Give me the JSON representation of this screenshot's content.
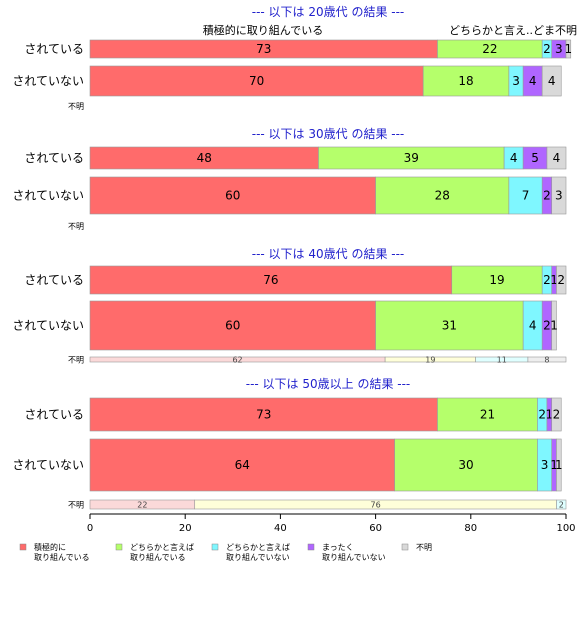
{
  "chart_data": {
    "type": "bar",
    "orientation": "horizontal",
    "stacked": true,
    "xlim": [
      0,
      100
    ],
    "x_ticks": [
      "0",
      "20",
      "40",
      "60",
      "80",
      "100"
    ],
    "grid": false,
    "legend_placement": "bottom",
    "series": [
      {
        "name": "積極的に 取り組んでいる",
        "label_lines": [
          "積極的に",
          "取り組んでいる"
        ],
        "color": "#ff6b6b",
        "light_color": "#fbd9d9"
      },
      {
        "name": "どちらかと言えば 取り組んでいる",
        "label_lines": [
          "どちらかと言えば",
          "取り組んでいる"
        ],
        "color": "#b5ff6b",
        "light_color": "#ffffd9"
      },
      {
        "name": "どちらかと言えば 取り組んでいない",
        "label_lines": [
          "どちらかと言えば",
          "取り組んでいない"
        ],
        "color": "#7ff7ff",
        "light_color": "#dfffff"
      },
      {
        "name": "まったく 取り組んでいない",
        "label_lines": [
          "まったく",
          "取り組んでいない"
        ],
        "color": "#b066ff",
        "light_color": "#ecdcff"
      },
      {
        "name": "不明",
        "label_lines": [
          "不明"
        ],
        "color": "#d9d9d9",
        "light_color": "#eeeeee"
      }
    ],
    "top_header_labels": [
      "積極的に取り組んでいる",
      "どちらかと言え..どま不明"
    ],
    "panels": [
      {
        "title": "--- 以下は 20歳代 の結果 ---",
        "rows": [
          {
            "label": "されている",
            "values": [
              73,
              22,
              2,
              3,
              1
            ]
          },
          {
            "label": "されていない",
            "values": [
              70,
              18,
              3,
              4,
              4
            ]
          },
          {
            "label": "不明",
            "small": true,
            "values": [],
            "value_labels": []
          }
        ]
      },
      {
        "title": "--- 以下は 30歳代 の結果 ---",
        "rows": [
          {
            "label": "されている",
            "values": [
              48,
              39,
              4,
              5,
              4
            ]
          },
          {
            "label": "されていない",
            "values": [
              60,
              28,
              7,
              2,
              3
            ]
          },
          {
            "label": "不明",
            "small": true,
            "values": [],
            "value_labels": []
          }
        ]
      },
      {
        "title": "--- 以下は 40歳代 の結果 ---",
        "rows": [
          {
            "label": "されている",
            "values": [
              76,
              19,
              2,
              1,
              2
            ]
          },
          {
            "label": "されていない",
            "values": [
              60,
              31,
              4,
              2,
              1
            ]
          },
          {
            "label": "不明",
            "small": true,
            "values": [
              62,
              19,
              11,
              0,
              8
            ],
            "value_labels": [
              "62",
              "19",
              "11",
              "",
              "8"
            ]
          }
        ]
      },
      {
        "title": "--- 以下は 50歳以上 の結果 ---",
        "rows": [
          {
            "label": "されている",
            "values": [
              73,
              21,
              2,
              1,
              2
            ]
          },
          {
            "label": "されていない",
            "values": [
              64,
              30,
              3,
              1,
              1
            ]
          },
          {
            "label": "不明",
            "small": true,
            "values": [
              22,
              76,
              2,
              0,
              0
            ],
            "value_labels": [
              "22",
              "76",
              "2",
              "",
              ""
            ]
          }
        ]
      }
    ]
  }
}
